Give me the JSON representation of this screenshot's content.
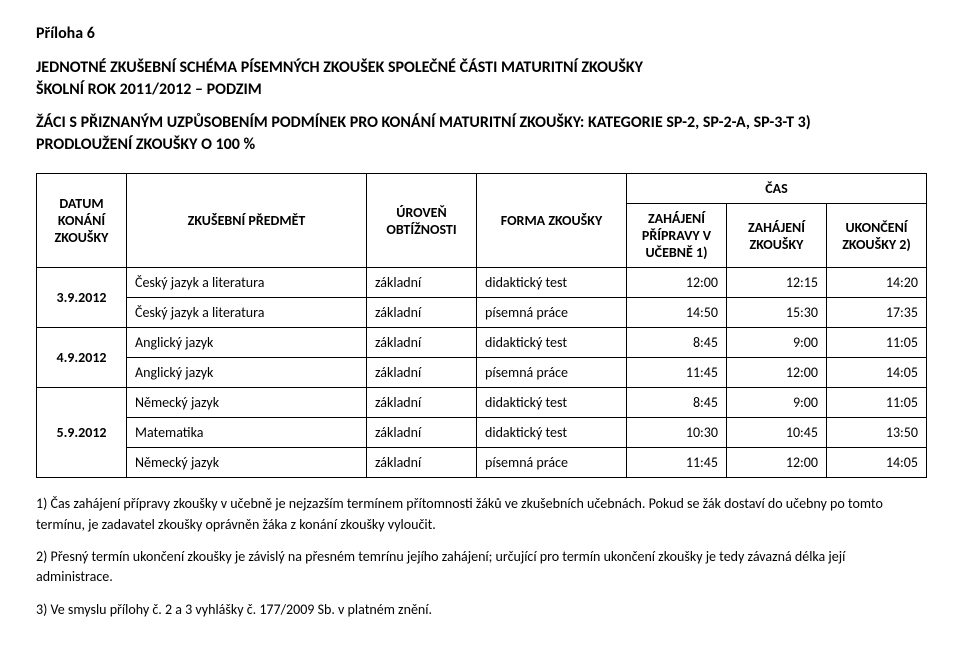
{
  "attachment_label": "Příloha 6",
  "heading_line1": "JEDNOTNÉ ZKUŠEBNÍ SCHÉMA PÍSEMNÝCH ZKOUŠEK SPOLEČNÉ ČÁSTI MATURITNÍ ZKOUŠKY",
  "heading_line2": "ŠKOLNÍ ROK 2011/2012 – PODZIM",
  "subheading_line1": "ŽÁCI S PŘIZNANÝM UZPŮSOBENÍM PODMÍNEK PRO KONÁNÍ MATURITNÍ ZKOUŠKY: KATEGORIE SP-2, SP-2-A, SP-3-T  3)",
  "subheading_line2": "PRODLOUŽENÍ ZKOUŠKY O 100 %",
  "table": {
    "header": {
      "date": "DATUM KONÁNÍ ZKOUŠKY",
      "subject": "ZKUŠEBNÍ PŘEDMĚT",
      "level": "ÚROVEŇ OBTÍŽNOSTI",
      "form": "FORMA ZKOUŠKY",
      "time_group": "ČAS",
      "t1": "ZAHÁJENÍ PŘÍPRAVY V UČEBNĚ 1)",
      "t2": "ZAHÁJENÍ ZKOUŠKY",
      "t3": "UKONČENÍ ZKOUŠKY 2)"
    },
    "groups": [
      {
        "date": "3.9.2012",
        "rows": [
          {
            "subject": "Český jazyk a literatura",
            "level": "základní",
            "form": "didaktický test",
            "t1": "12:00",
            "t2": "12:15",
            "t3": "14:20"
          },
          {
            "subject": "Český jazyk a literatura",
            "level": "základní",
            "form": "písemná práce",
            "t1": "14:50",
            "t2": "15:30",
            "t3": "17:35"
          }
        ]
      },
      {
        "date": "4.9.2012",
        "rows": [
          {
            "subject": "Anglický jazyk",
            "level": "základní",
            "form": "didaktický test",
            "t1": "8:45",
            "t2": "9:00",
            "t3": "11:05"
          },
          {
            "subject": "Anglický jazyk",
            "level": "základní",
            "form": "písemná práce",
            "t1": "11:45",
            "t2": "12:00",
            "t3": "14:05"
          }
        ]
      },
      {
        "date": "5.9.2012",
        "rows": [
          {
            "subject": "Německý jazyk",
            "level": "základní",
            "form": "didaktický test",
            "t1": "8:45",
            "t2": "9:00",
            "t3": "11:05"
          },
          {
            "subject": "Matematika",
            "level": "základní",
            "form": "didaktický test",
            "t1": "10:30",
            "t2": "10:45",
            "t3": "13:50"
          },
          {
            "subject": "Německý jazyk",
            "level": "základní",
            "form": "písemná práce",
            "t1": "11:45",
            "t2": "12:00",
            "t3": "14:05"
          }
        ]
      }
    ]
  },
  "notes": {
    "n1": "1) Čas zahájení přípravy zkoušky v učebně je nejzazším termínem přítomnosti žáků ve zkušebních učebnách. Pokud se žák dostaví do učebny po tomto termínu, je zadavatel zkoušky oprávněn žáka z konání zkoušky vyloučit.",
    "n2": "2) Přesný termín ukončení zkoušky je závislý na přesném temrínu jejího zahájení; určující pro termín ukončení zkoušky je tedy závazná délka její administrace.",
    "n3": "3) Ve smyslu přílohy č. 2 a 3 vyhlášky č. 177/2009 Sb. v platném znění."
  }
}
